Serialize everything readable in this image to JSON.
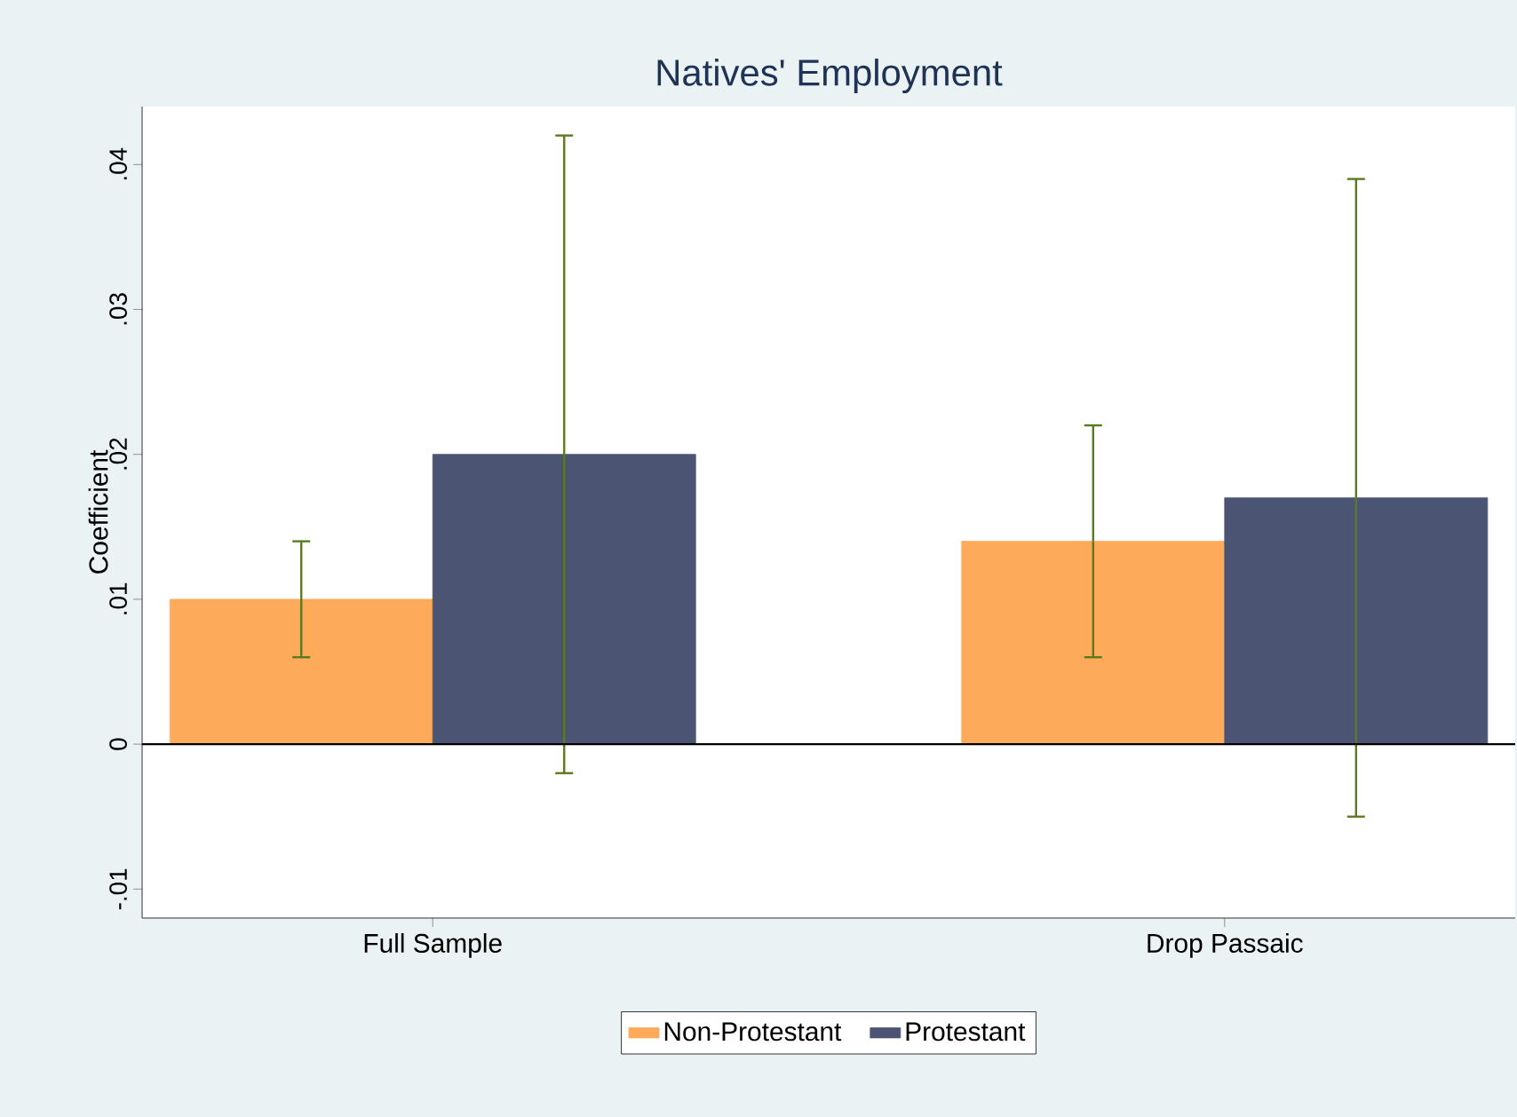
{
  "chart_data": {
    "type": "bar",
    "title": "Natives' Employment",
    "ylabel": "Coefficient",
    "categories": [
      "Full Sample",
      "Drop Passaic"
    ],
    "series": [
      {
        "name": "Non-Protestant",
        "color": "#fdaa5a",
        "values": [
          0.01,
          0.014
        ],
        "errors": [
          [
            0.006,
            0.014
          ],
          [
            0.006,
            0.022
          ]
        ]
      },
      {
        "name": "Protestant",
        "color": "#4b5573",
        "values": [
          0.02,
          0.017
        ],
        "errors": [
          [
            -0.002,
            0.042
          ],
          [
            -0.005,
            0.039
          ]
        ]
      }
    ],
    "ylim": [
      -0.012,
      0.044
    ],
    "yticks": [
      {
        "value": -0.01,
        "label": "-.01"
      },
      0,
      {
        "value": 0.01,
        "label": ".01"
      },
      {
        "value": 0.02,
        "label": ".02"
      },
      {
        "value": 0.03,
        "label": ".03"
      },
      {
        "value": 0.04,
        "label": ".04"
      }
    ],
    "ref_lines": [
      {
        "axis": "y",
        "value": 0,
        "color": "#000000"
      }
    ],
    "grid": false,
    "legend": "bottom"
  }
}
